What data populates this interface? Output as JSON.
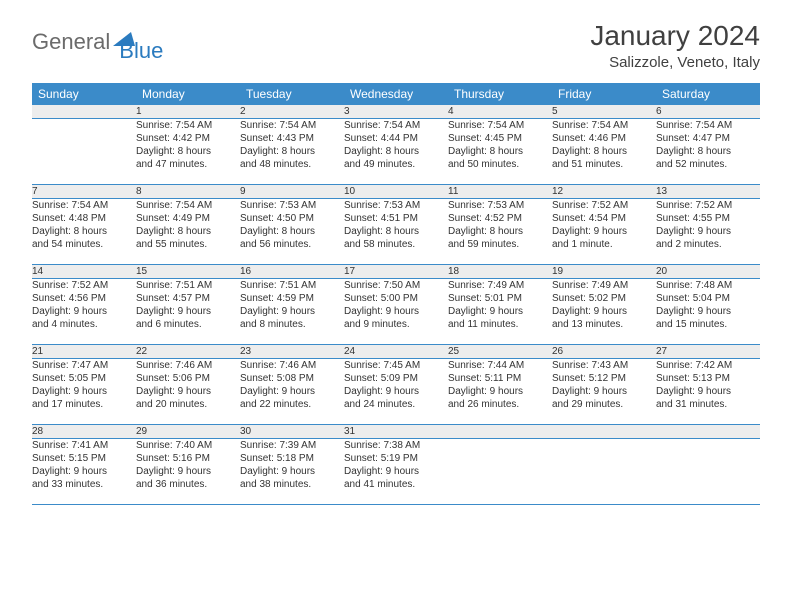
{
  "logo": {
    "text1": "General",
    "text2": "Blue"
  },
  "title": "January 2024",
  "location": "Salizzole, Veneto, Italy",
  "colors": {
    "header_bg": "#3b8bc9",
    "header_text": "#ffffff",
    "daynum_bg": "#ededed",
    "row_border": "#3b8bc9",
    "logo_gray": "#6b6b6b",
    "logo_blue": "#2b7bbf"
  },
  "day_headers": [
    "Sunday",
    "Monday",
    "Tuesday",
    "Wednesday",
    "Thursday",
    "Friday",
    "Saturday"
  ],
  "weeks": [
    {
      "nums": [
        "",
        "1",
        "2",
        "3",
        "4",
        "5",
        "6"
      ],
      "cells": [
        [],
        [
          "Sunrise: 7:54 AM",
          "Sunset: 4:42 PM",
          "Daylight: 8 hours",
          "and 47 minutes."
        ],
        [
          "Sunrise: 7:54 AM",
          "Sunset: 4:43 PM",
          "Daylight: 8 hours",
          "and 48 minutes."
        ],
        [
          "Sunrise: 7:54 AM",
          "Sunset: 4:44 PM",
          "Daylight: 8 hours",
          "and 49 minutes."
        ],
        [
          "Sunrise: 7:54 AM",
          "Sunset: 4:45 PM",
          "Daylight: 8 hours",
          "and 50 minutes."
        ],
        [
          "Sunrise: 7:54 AM",
          "Sunset: 4:46 PM",
          "Daylight: 8 hours",
          "and 51 minutes."
        ],
        [
          "Sunrise: 7:54 AM",
          "Sunset: 4:47 PM",
          "Daylight: 8 hours",
          "and 52 minutes."
        ]
      ]
    },
    {
      "nums": [
        "7",
        "8",
        "9",
        "10",
        "11",
        "12",
        "13"
      ],
      "cells": [
        [
          "Sunrise: 7:54 AM",
          "Sunset: 4:48 PM",
          "Daylight: 8 hours",
          "and 54 minutes."
        ],
        [
          "Sunrise: 7:54 AM",
          "Sunset: 4:49 PM",
          "Daylight: 8 hours",
          "and 55 minutes."
        ],
        [
          "Sunrise: 7:53 AM",
          "Sunset: 4:50 PM",
          "Daylight: 8 hours",
          "and 56 minutes."
        ],
        [
          "Sunrise: 7:53 AM",
          "Sunset: 4:51 PM",
          "Daylight: 8 hours",
          "and 58 minutes."
        ],
        [
          "Sunrise: 7:53 AM",
          "Sunset: 4:52 PM",
          "Daylight: 8 hours",
          "and 59 minutes."
        ],
        [
          "Sunrise: 7:52 AM",
          "Sunset: 4:54 PM",
          "Daylight: 9 hours",
          "and 1 minute."
        ],
        [
          "Sunrise: 7:52 AM",
          "Sunset: 4:55 PM",
          "Daylight: 9 hours",
          "and 2 minutes."
        ]
      ]
    },
    {
      "nums": [
        "14",
        "15",
        "16",
        "17",
        "18",
        "19",
        "20"
      ],
      "cells": [
        [
          "Sunrise: 7:52 AM",
          "Sunset: 4:56 PM",
          "Daylight: 9 hours",
          "and 4 minutes."
        ],
        [
          "Sunrise: 7:51 AM",
          "Sunset: 4:57 PM",
          "Daylight: 9 hours",
          "and 6 minutes."
        ],
        [
          "Sunrise: 7:51 AM",
          "Sunset: 4:59 PM",
          "Daylight: 9 hours",
          "and 8 minutes."
        ],
        [
          "Sunrise: 7:50 AM",
          "Sunset: 5:00 PM",
          "Daylight: 9 hours",
          "and 9 minutes."
        ],
        [
          "Sunrise: 7:49 AM",
          "Sunset: 5:01 PM",
          "Daylight: 9 hours",
          "and 11 minutes."
        ],
        [
          "Sunrise: 7:49 AM",
          "Sunset: 5:02 PM",
          "Daylight: 9 hours",
          "and 13 minutes."
        ],
        [
          "Sunrise: 7:48 AM",
          "Sunset: 5:04 PM",
          "Daylight: 9 hours",
          "and 15 minutes."
        ]
      ]
    },
    {
      "nums": [
        "21",
        "22",
        "23",
        "24",
        "25",
        "26",
        "27"
      ],
      "cells": [
        [
          "Sunrise: 7:47 AM",
          "Sunset: 5:05 PM",
          "Daylight: 9 hours",
          "and 17 minutes."
        ],
        [
          "Sunrise: 7:46 AM",
          "Sunset: 5:06 PM",
          "Daylight: 9 hours",
          "and 20 minutes."
        ],
        [
          "Sunrise: 7:46 AM",
          "Sunset: 5:08 PM",
          "Daylight: 9 hours",
          "and 22 minutes."
        ],
        [
          "Sunrise: 7:45 AM",
          "Sunset: 5:09 PM",
          "Daylight: 9 hours",
          "and 24 minutes."
        ],
        [
          "Sunrise: 7:44 AM",
          "Sunset: 5:11 PM",
          "Daylight: 9 hours",
          "and 26 minutes."
        ],
        [
          "Sunrise: 7:43 AM",
          "Sunset: 5:12 PM",
          "Daylight: 9 hours",
          "and 29 minutes."
        ],
        [
          "Sunrise: 7:42 AM",
          "Sunset: 5:13 PM",
          "Daylight: 9 hours",
          "and 31 minutes."
        ]
      ]
    },
    {
      "nums": [
        "28",
        "29",
        "30",
        "31",
        "",
        "",
        ""
      ],
      "cells": [
        [
          "Sunrise: 7:41 AM",
          "Sunset: 5:15 PM",
          "Daylight: 9 hours",
          "and 33 minutes."
        ],
        [
          "Sunrise: 7:40 AM",
          "Sunset: 5:16 PM",
          "Daylight: 9 hours",
          "and 36 minutes."
        ],
        [
          "Sunrise: 7:39 AM",
          "Sunset: 5:18 PM",
          "Daylight: 9 hours",
          "and 38 minutes."
        ],
        [
          "Sunrise: 7:38 AM",
          "Sunset: 5:19 PM",
          "Daylight: 9 hours",
          "and 41 minutes."
        ],
        [],
        [],
        []
      ]
    }
  ]
}
